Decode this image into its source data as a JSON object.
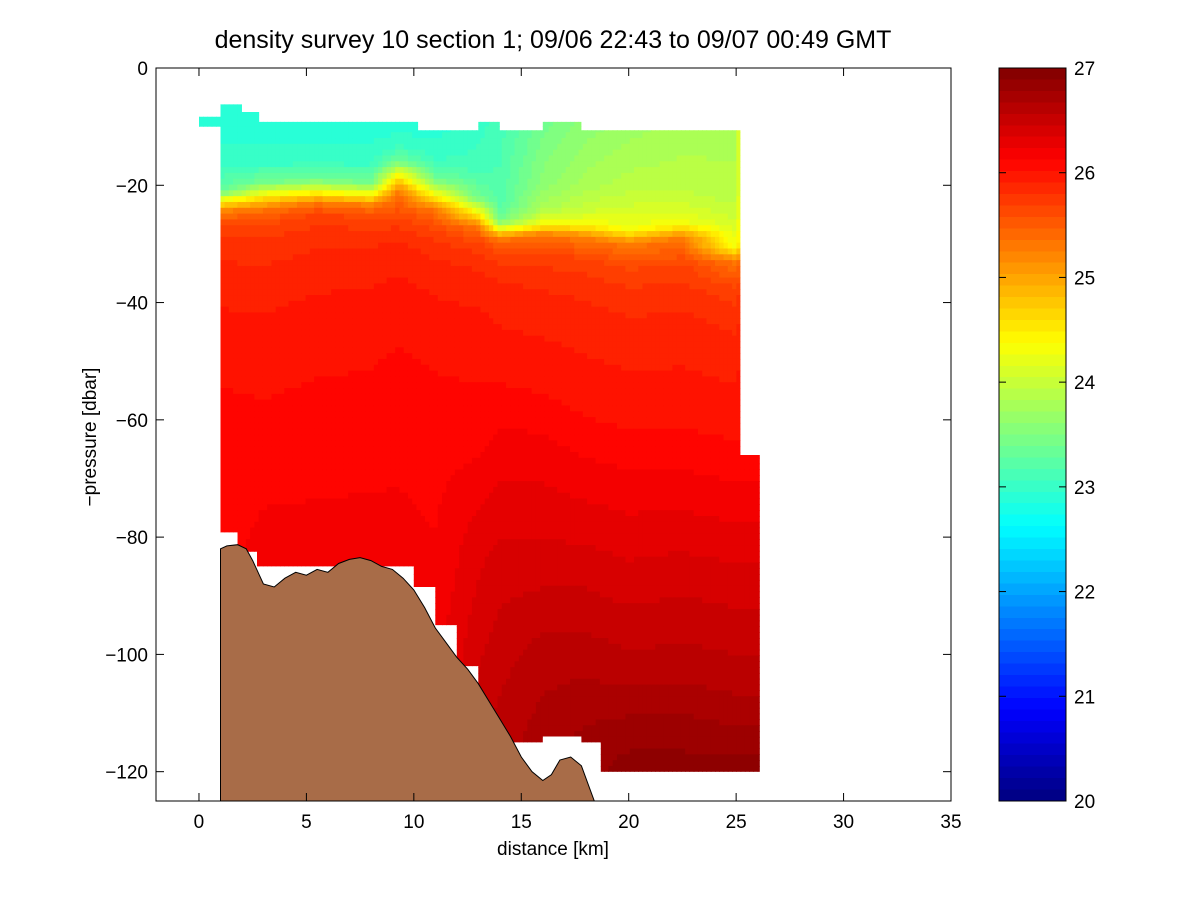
{
  "chart_data": {
    "type": "heatmap",
    "title": "density survey 10 section 1; 09/06 22:43 to 09/07 00:49 GMT",
    "xlabel": "distance [km]",
    "ylabel": "−pressure [dbar]",
    "xlim": [
      -2,
      35
    ],
    "ylim": [
      -125,
      0
    ],
    "xticks": [
      0,
      5,
      10,
      15,
      20,
      25,
      30,
      35
    ],
    "xtick_labels": [
      "0",
      "5",
      "10",
      "15",
      "20",
      "25",
      "30",
      "35"
    ],
    "yticks": [
      0,
      -20,
      -40,
      -60,
      -80,
      -100,
      -120
    ],
    "ytick_labels": [
      "0",
      "−20",
      "−40",
      "−60",
      "−80",
      "−100",
      "−120"
    ],
    "colorbar": {
      "range": [
        20,
        27
      ],
      "ticks": [
        20,
        21,
        22,
        23,
        24,
        25,
        26,
        27
      ],
      "tick_labels": [
        "20",
        "21",
        "22",
        "23",
        "24",
        "25",
        "26",
        "27"
      ],
      "colormap": "jet"
    },
    "grid": false,
    "field_value_ranges": {
      "surface_layer": [
        22.7,
        24.0
      ],
      "pycnocline_depth_range_dbar": [
        -31,
        -17
      ],
      "mid_layer": [
        25.6,
        26.2
      ],
      "deep_layer": [
        26.3,
        26.9
      ]
    },
    "sections": [
      {
        "x": 1.0,
        "top": -9.2,
        "bottom": -79.2,
        "levels": [
          [
            -9.2,
            22.9
          ],
          [
            -16,
            23.0
          ],
          [
            -21,
            23.3
          ],
          [
            -22.5,
            24.3
          ],
          [
            -24.5,
            25.3
          ],
          [
            -27,
            25.7
          ],
          [
            -35,
            25.9
          ],
          [
            -47,
            26.0
          ],
          [
            -62,
            26.1
          ],
          [
            -79.2,
            26.1
          ]
        ]
      },
      {
        "x": 3.0,
        "top": -9.2,
        "bottom": -85.0,
        "levels": [
          [
            -9.2,
            22.9
          ],
          [
            -16,
            23.0
          ],
          [
            -19.5,
            23.4
          ],
          [
            -21.5,
            24.3
          ],
          [
            -24,
            25.3
          ],
          [
            -27,
            25.7
          ],
          [
            -36,
            25.9
          ],
          [
            -48,
            26.0
          ],
          [
            -65,
            26.1
          ],
          [
            -85,
            26.2
          ]
        ]
      },
      {
        "x": 5.5,
        "top": -9.2,
        "bottom": -85.0,
        "levels": [
          [
            -9.2,
            22.9
          ],
          [
            -16,
            23.0
          ],
          [
            -19,
            23.4
          ],
          [
            -21,
            24.3
          ],
          [
            -23,
            25.3
          ],
          [
            -25,
            25.7
          ],
          [
            -33,
            25.9
          ],
          [
            -44,
            26.0
          ],
          [
            -62,
            26.1
          ],
          [
            -85,
            26.2
          ]
        ]
      },
      {
        "x": 8.0,
        "top": -9.2,
        "bottom": -85.0,
        "levels": [
          [
            -9.2,
            22.9
          ],
          [
            -16,
            23.0
          ],
          [
            -19.5,
            23.4
          ],
          [
            -21.5,
            24.3
          ],
          [
            -23.5,
            25.3
          ],
          [
            -26,
            25.7
          ],
          [
            -32,
            25.9
          ],
          [
            -43,
            26.0
          ],
          [
            -60,
            26.1
          ],
          [
            -85,
            26.2
          ]
        ]
      },
      {
        "x": 9.3,
        "top": -9.2,
        "bottom": -88.0,
        "levels": [
          [
            -9.2,
            22.9
          ],
          [
            -13,
            23.0
          ],
          [
            -16,
            23.4
          ],
          [
            -18,
            24.3
          ],
          [
            -21,
            25.3
          ],
          [
            -26,
            25.7
          ],
          [
            -31,
            25.9
          ],
          [
            -40,
            26.0
          ],
          [
            -55,
            26.1
          ],
          [
            -88,
            26.2
          ]
        ]
      },
      {
        "x": 11.0,
        "top": -9.8,
        "bottom": -98.0,
        "levels": [
          [
            -9.8,
            22.9
          ],
          [
            -15,
            23.0
          ],
          [
            -19,
            23.4
          ],
          [
            -21.5,
            24.3
          ],
          [
            -24,
            25.3
          ],
          [
            -28,
            25.7
          ],
          [
            -34,
            25.9
          ],
          [
            -44,
            26.0
          ],
          [
            -60,
            26.1
          ],
          [
            -98,
            26.2
          ]
        ]
      },
      {
        "x": 13.0,
        "top": -9.2,
        "bottom": -110.0,
        "levels": [
          [
            -9.2,
            23.0
          ],
          [
            -17,
            23.1
          ],
          [
            -22,
            23.4
          ],
          [
            -24.5,
            24.3
          ],
          [
            -27,
            25.3
          ],
          [
            -30,
            25.7
          ],
          [
            -36,
            25.9
          ],
          [
            -46,
            26.0
          ],
          [
            -62,
            26.1
          ],
          [
            -80,
            26.3
          ],
          [
            -110,
            26.5
          ]
        ]
      },
      {
        "x": 14.0,
        "top": -10.0,
        "bottom": -114.0,
        "levels": [
          [
            -10,
            23.1
          ],
          [
            -23,
            23.2
          ],
          [
            -26,
            23.4
          ],
          [
            -27.5,
            24.3
          ],
          [
            -29,
            25.3
          ],
          [
            -32,
            25.7
          ],
          [
            -38,
            25.9
          ],
          [
            -50,
            26.0
          ],
          [
            -65,
            26.2
          ],
          [
            -85,
            26.4
          ],
          [
            -114,
            26.6
          ]
        ]
      },
      {
        "x": 16.0,
        "top": -9.2,
        "bottom": -114.0,
        "levels": [
          [
            -9.2,
            23.4
          ],
          [
            -20,
            23.6
          ],
          [
            -24,
            23.8
          ],
          [
            -26.5,
            24.3
          ],
          [
            -28.5,
            25.3
          ],
          [
            -32,
            25.7
          ],
          [
            -40,
            25.9
          ],
          [
            -52,
            26.0
          ],
          [
            -66,
            26.2
          ],
          [
            -85,
            26.4
          ],
          [
            -100,
            26.6
          ],
          [
            -114,
            26.7
          ]
        ]
      },
      {
        "x": 18.0,
        "top": -10.0,
        "bottom": -116.0,
        "levels": [
          [
            -10,
            23.6
          ],
          [
            -20,
            23.8
          ],
          [
            -24,
            24.0
          ],
          [
            -26.5,
            24.3
          ],
          [
            -29,
            25.3
          ],
          [
            -33,
            25.7
          ],
          [
            -42,
            25.9
          ],
          [
            -56,
            26.0
          ],
          [
            -70,
            26.2
          ],
          [
            -85,
            26.4
          ],
          [
            -100,
            26.6
          ],
          [
            -116,
            26.8
          ]
        ]
      },
      {
        "x": 20.0,
        "top": -10.0,
        "bottom": -120.0,
        "levels": [
          [
            -10,
            23.7
          ],
          [
            -20,
            23.9
          ],
          [
            -24.5,
            24.1
          ],
          [
            -27.5,
            24.3
          ],
          [
            -30,
            25.3
          ],
          [
            -35,
            25.7
          ],
          [
            -45,
            25.9
          ],
          [
            -58,
            26.0
          ],
          [
            -72,
            26.2
          ],
          [
            -88,
            26.4
          ],
          [
            -103,
            26.6
          ],
          [
            -113,
            26.8
          ],
          [
            -120,
            26.9
          ]
        ]
      },
      {
        "x": 22.5,
        "top": -10.0,
        "bottom": -120.0,
        "levels": [
          [
            -10,
            23.8
          ],
          [
            -20,
            23.9
          ],
          [
            -24,
            24.1
          ],
          [
            -26.5,
            24.3
          ],
          [
            -29,
            25.3
          ],
          [
            -34,
            25.7
          ],
          [
            -44,
            25.9
          ],
          [
            -58,
            26.0
          ],
          [
            -72,
            26.2
          ],
          [
            -86,
            26.4
          ],
          [
            -102,
            26.6
          ],
          [
            -113,
            26.8
          ],
          [
            -120,
            26.9
          ]
        ]
      },
      {
        "x": 25.0,
        "top": -10.0,
        "bottom": -120.0,
        "levels": [
          [
            -10,
            23.8
          ],
          [
            -22,
            23.9
          ],
          [
            -27.5,
            24.1
          ],
          [
            -30.5,
            24.3
          ],
          [
            -33,
            25.3
          ],
          [
            -38,
            25.7
          ],
          [
            -48,
            25.9
          ],
          [
            -60,
            26.0
          ],
          [
            -74,
            26.2
          ],
          [
            -88,
            26.4
          ],
          [
            -104,
            26.6
          ],
          [
            -115,
            26.8
          ],
          [
            -120,
            26.9
          ]
        ]
      },
      {
        "x": 26.0,
        "top": -66.0,
        "bottom": -120.0,
        "levels": [
          [
            -66,
            26.1
          ],
          [
            -74,
            26.2
          ],
          [
            -88,
            26.4
          ],
          [
            -104,
            26.6
          ],
          [
            -115,
            26.8
          ],
          [
            -120,
            26.9
          ]
        ]
      }
    ],
    "data_mask": [
      [
        1.0,
        -9.2
      ],
      [
        1.0,
        -10.0
      ],
      [
        0.0,
        -10.0
      ],
      [
        0.0,
        -8.3
      ],
      [
        1.0,
        -8.3
      ],
      [
        1.0,
        -6.2
      ],
      [
        2.0,
        -6.2
      ],
      [
        2.0,
        -7.5
      ],
      [
        2.8,
        -7.5
      ],
      [
        2.8,
        -9.2
      ],
      [
        10.2,
        -9.2
      ],
      [
        10.2,
        -10.6
      ],
      [
        13.0,
        -10.6
      ],
      [
        13.0,
        -9.2
      ],
      [
        14.0,
        -9.2
      ],
      [
        14.0,
        -10.6
      ],
      [
        16.0,
        -10.6
      ],
      [
        16.0,
        -9.2
      ],
      [
        17.8,
        -9.2
      ],
      [
        17.8,
        -10.6
      ],
      [
        25.2,
        -10.6
      ],
      [
        25.2,
        -66.0
      ],
      [
        26.1,
        -66.0
      ],
      [
        26.1,
        -120.0
      ],
      [
        18.7,
        -120.0
      ],
      [
        18.7,
        -115.0
      ],
      [
        17.8,
        -115.0
      ],
      [
        17.8,
        -114.0
      ],
      [
        16.0,
        -114.0
      ],
      [
        16.0,
        -115.0
      ],
      [
        14.0,
        -115.0
      ],
      [
        14.0,
        -111.0
      ],
      [
        13.0,
        -111.0
      ],
      [
        13.0,
        -102.0
      ],
      [
        12.0,
        -102.0
      ],
      [
        12.0,
        -95.0
      ],
      [
        11.0,
        -95.0
      ],
      [
        11.0,
        -88.5
      ],
      [
        10.0,
        -88.5
      ],
      [
        10.0,
        -85.0
      ],
      [
        2.7,
        -85.0
      ],
      [
        2.7,
        -82.5
      ],
      [
        1.8,
        -82.5
      ],
      [
        1.8,
        -79.2
      ],
      [
        1.0,
        -79.2
      ]
    ],
    "bathymetry": {
      "fill_color": "#a86c48",
      "profile": [
        [
          1.0,
          -125.0
        ],
        [
          1.0,
          -82.0
        ],
        [
          1.3,
          -81.5
        ],
        [
          1.8,
          -81.3
        ],
        [
          2.2,
          -82.0
        ],
        [
          2.5,
          -84.0
        ],
        [
          3.0,
          -88.0
        ],
        [
          3.5,
          -88.5
        ],
        [
          4.0,
          -87.0
        ],
        [
          4.5,
          -86.0
        ],
        [
          5.0,
          -86.5
        ],
        [
          5.5,
          -85.5
        ],
        [
          6.0,
          -86.0
        ],
        [
          6.5,
          -84.5
        ],
        [
          7.0,
          -83.8
        ],
        [
          7.5,
          -83.5
        ],
        [
          8.0,
          -84.0
        ],
        [
          8.5,
          -85.0
        ],
        [
          9.0,
          -85.5
        ],
        [
          9.5,
          -87.0
        ],
        [
          10.0,
          -89.0
        ],
        [
          10.5,
          -92.0
        ],
        [
          11.0,
          -95.5
        ],
        [
          11.5,
          -98.0
        ],
        [
          12.0,
          -100.5
        ],
        [
          12.5,
          -102.5
        ],
        [
          13.0,
          -105.0
        ],
        [
          13.5,
          -108.0
        ],
        [
          14.0,
          -111.0
        ],
        [
          14.5,
          -114.0
        ],
        [
          15.0,
          -117.5
        ],
        [
          15.5,
          -120.0
        ],
        [
          16.0,
          -121.5
        ],
        [
          16.4,
          -120.5
        ],
        [
          16.8,
          -118.0
        ],
        [
          17.3,
          -117.5
        ],
        [
          17.8,
          -119.0
        ],
        [
          18.2,
          -123.0
        ],
        [
          18.4,
          -125.0
        ]
      ]
    }
  }
}
